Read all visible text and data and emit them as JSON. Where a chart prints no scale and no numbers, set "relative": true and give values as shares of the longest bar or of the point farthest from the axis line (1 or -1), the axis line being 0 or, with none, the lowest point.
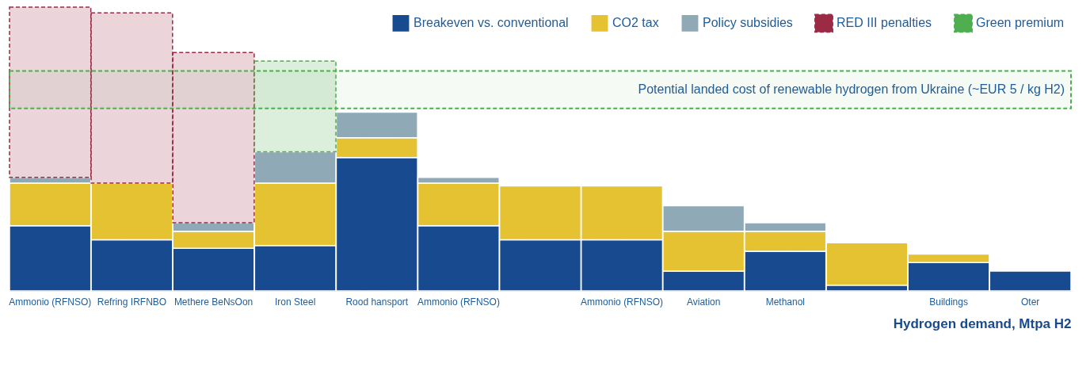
{
  "chart_data": {
    "type": "bar",
    "stacked": true,
    "relative": true,
    "xlabel": "Hydrogen demand, Mtpa H2",
    "legend": "top right",
    "categories": [
      "Ammonio (RFNSO)",
      "Refring IRFNBO",
      "Methere BeNsOon",
      "Iron Steel",
      "Rood hansport",
      "Ammonio (RFNSO)",
      null,
      "Ammonio (RFNSO)",
      "Aviation",
      "Methanol",
      null,
      "Buildings",
      "Oter"
    ],
    "series": [
      {
        "name": "Breakeven vs. conventional",
        "color": "#174a8f",
        "values": [
          0.23,
          0.18,
          0.15,
          0.16,
          0.47,
          0.23,
          0.18,
          0.18,
          0.07,
          0.14,
          0.02,
          0.1,
          0.07
        ]
      },
      {
        "name": "CO2 tax",
        "color": "#e5c232",
        "values": [
          0.15,
          0.2,
          0.06,
          0.22,
          0.07,
          0.15,
          0.19,
          0.19,
          0.14,
          0.07,
          0.15,
          0.03,
          null
        ]
      },
      {
        "name": "Policy subsidies",
        "color": "#8fa9b6",
        "values": [
          0.02,
          null,
          0.03,
          0.11,
          0.09,
          0.02,
          null,
          null,
          0.09,
          0.03,
          null,
          null,
          null
        ]
      },
      {
        "name": "RED III penalties",
        "color": "#9b2a45",
        "line_style": "dashed",
        "values": [
          0.6,
          0.6,
          0.6,
          null,
          null,
          null,
          null,
          null,
          null,
          null,
          null,
          null,
          null
        ]
      },
      {
        "name": "Green premium",
        "color": "#4fae4f",
        "line_style": "dashed",
        "values": [
          null,
          null,
          null,
          0.32,
          null,
          null,
          null,
          null,
          null,
          null,
          null,
          null,
          null
        ]
      }
    ],
    "bands": [
      {
        "axis": "y",
        "from": 0.643,
        "to": 0.775,
        "label": "Potential landed cost of renewable hydrogen from Ukraine (~EUR 5 / kg H2)",
        "color": "#4fae4f"
      }
    ]
  }
}
